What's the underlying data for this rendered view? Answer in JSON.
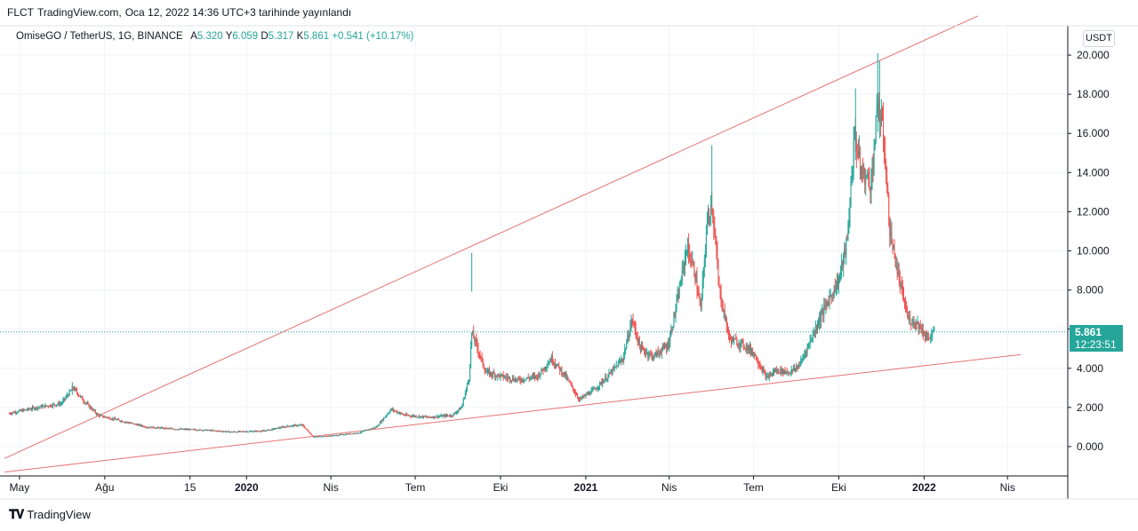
{
  "header": {
    "author": "FLCT",
    "site": "TradingView.com,",
    "published": "Oca 12, 2022 14:36 UTC+3 tarihinde yayınlandı"
  },
  "legend": {
    "symbol": "OmiseGO / TetherUS, 1G, BINANCE",
    "open_label": "A",
    "open": "5.320",
    "high_label": "Y",
    "high": "6.059",
    "low_label": "D",
    "low": "5.317",
    "close_label": "K",
    "close": "5.861",
    "change": "+0.541 (+10.17%)"
  },
  "currency_button": "USDT",
  "price_tag": {
    "price": "5.861",
    "countdown": "12:23:51"
  },
  "footer": {
    "brand": "TradingView",
    "logo_icon": "tradingview-logo-icon"
  },
  "colors": {
    "up": "#26a69a",
    "down": "#ef5350",
    "trendline": "#e57373",
    "grid": "#f0f3fa"
  },
  "chart_data": {
    "type": "candlestick",
    "y_axis_ticks": [
      "20.000",
      "18.000",
      "16.000",
      "14.000",
      "12.000",
      "10.000",
      "8.000",
      "6.000",
      "4.000",
      "2.000",
      "0.000"
    ],
    "ylim": [
      -1.5,
      21.5
    ],
    "x_axis_ticks": [
      "May",
      "Ağu",
      "15",
      "2020",
      "Nis",
      "Tem",
      "Eki",
      "2021",
      "Nis",
      "Tem",
      "Eki",
      "2022",
      "Nis"
    ],
    "x_tick_dates": [
      "2019-05-01",
      "2019-08-01",
      "2019-11-01",
      "2020-01-01",
      "2020-04-01",
      "2020-07-01",
      "2020-10-01",
      "2021-01-01",
      "2021-04-01",
      "2021-07-01",
      "2021-10-01",
      "2022-01-01",
      "2022-04-01"
    ],
    "current_price": 5.861,
    "trendlines": [
      {
        "name": "upper",
        "points": [
          [
            "2019-04-15",
            -0.6
          ],
          [
            "2022-02-28",
            22.0
          ]
        ]
      },
      {
        "name": "lower",
        "points": [
          [
            "2019-04-15",
            -1.3
          ],
          [
            "2022-04-15",
            4.7
          ]
        ]
      }
    ],
    "price_path": [
      [
        "2019-04-20",
        1.7
      ],
      [
        "2019-05-20",
        2.0
      ],
      [
        "2019-06-15",
        2.2
      ],
      [
        "2019-06-28",
        3.0
      ],
      [
        "2019-07-10",
        2.3
      ],
      [
        "2019-07-25",
        1.6
      ],
      [
        "2019-08-20",
        1.3
      ],
      [
        "2019-09-15",
        1.0
      ],
      [
        "2019-10-15",
        0.9
      ],
      [
        "2019-11-15",
        0.85
      ],
      [
        "2019-12-15",
        0.75
      ],
      [
        "2020-01-20",
        0.8
      ],
      [
        "2020-02-15",
        1.05
      ],
      [
        "2020-03-01",
        1.1
      ],
      [
        "2020-03-13",
        0.5
      ],
      [
        "2020-04-01",
        0.55
      ],
      [
        "2020-05-01",
        0.7
      ],
      [
        "2020-05-20",
        1.0
      ],
      [
        "2020-06-05",
        1.9
      ],
      [
        "2020-06-20",
        1.6
      ],
      [
        "2020-07-15",
        1.5
      ],
      [
        "2020-08-10",
        1.6
      ],
      [
        "2020-08-20",
        2.0
      ],
      [
        "2020-08-28",
        3.5
      ],
      [
        "2020-08-31",
        5.8
      ],
      [
        "2020-09-05",
        5.2
      ],
      [
        "2020-09-15",
        3.8
      ],
      [
        "2020-10-01",
        3.6
      ],
      [
        "2020-10-20",
        3.4
      ],
      [
        "2020-11-10",
        3.6
      ],
      [
        "2020-11-25",
        4.5
      ],
      [
        "2020-12-10",
        3.6
      ],
      [
        "2020-12-25",
        2.4
      ],
      [
        "2021-01-10",
        2.9
      ],
      [
        "2021-01-25",
        3.6
      ],
      [
        "2021-02-10",
        4.5
      ],
      [
        "2021-02-20",
        6.5
      ],
      [
        "2021-03-01",
        5.0
      ],
      [
        "2021-03-15",
        4.6
      ],
      [
        "2021-03-31",
        5.2
      ],
      [
        "2021-04-10",
        7.5
      ],
      [
        "2021-04-20",
        10.2
      ],
      [
        "2021-04-28",
        9.0
      ],
      [
        "2021-05-05",
        7.0
      ],
      [
        "2021-05-12",
        11.5
      ],
      [
        "2021-05-17",
        12.5
      ],
      [
        "2021-05-25",
        8.0
      ],
      [
        "2021-06-05",
        5.5
      ],
      [
        "2021-06-20",
        5.2
      ],
      [
        "2021-07-01",
        4.8
      ],
      [
        "2021-07-15",
        3.5
      ],
      [
        "2021-07-25",
        3.9
      ],
      [
        "2021-08-10",
        3.8
      ],
      [
        "2021-08-20",
        4.2
      ],
      [
        "2021-09-01",
        5.5
      ],
      [
        "2021-09-10",
        6.5
      ],
      [
        "2021-09-20",
        7.5
      ],
      [
        "2021-10-01",
        8.5
      ],
      [
        "2021-10-10",
        10.5
      ],
      [
        "2021-10-18",
        16.0
      ],
      [
        "2021-10-25",
        14.0
      ],
      [
        "2021-11-05",
        13.5
      ],
      [
        "2021-11-12",
        17.5
      ],
      [
        "2021-11-18",
        16.0
      ],
      [
        "2021-11-25",
        11.0
      ],
      [
        "2021-12-05",
        8.5
      ],
      [
        "2021-12-15",
        6.5
      ],
      [
        "2021-12-25",
        6.3
      ],
      [
        "2022-01-05",
        5.5
      ],
      [
        "2022-01-12",
        5.861
      ]
    ]
  }
}
